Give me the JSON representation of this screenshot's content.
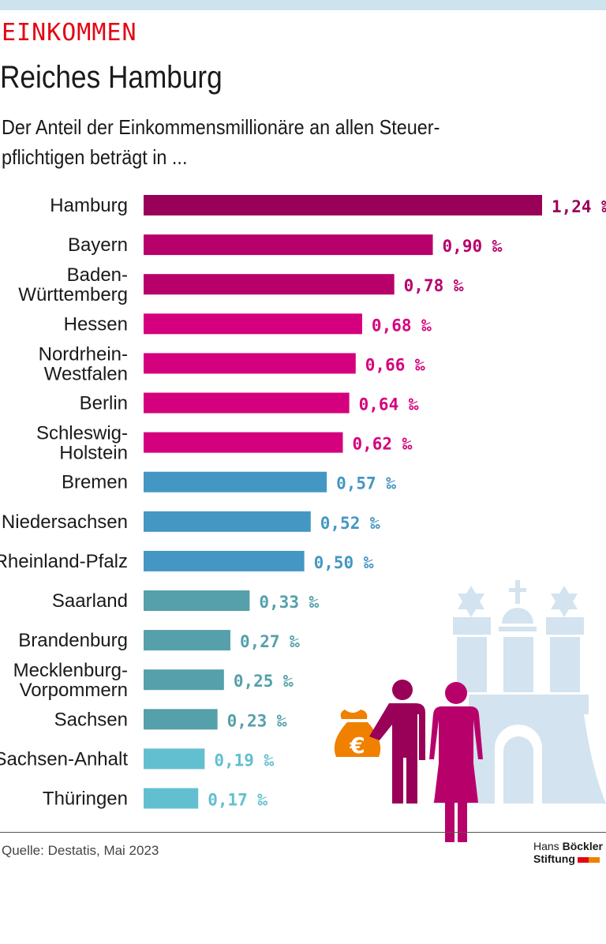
{
  "header": {
    "kicker": "EINKOMMEN",
    "title": "Reiches Hamburg",
    "subtitle_line1": "Der Anteil der Einkommensmillionäre an allen Steuer-",
    "subtitle_line2": "pflichtigen beträgt in ..."
  },
  "chart_data": {
    "type": "bar",
    "orientation": "horizontal",
    "unit": "‰",
    "categories": [
      [
        "Hamburg"
      ],
      [
        "Bayern"
      ],
      [
        "Baden-",
        "Württemberg"
      ],
      [
        "Hessen"
      ],
      [
        "Nordrhein-",
        "Westfalen"
      ],
      [
        "Berlin"
      ],
      [
        "Schleswig-",
        "Holstein"
      ],
      [
        "Bremen"
      ],
      [
        "Niedersachsen"
      ],
      [
        "Rheinland-Pfalz"
      ],
      [
        "Saarland"
      ],
      [
        "Brandenburg"
      ],
      [
        "Mecklenburg-",
        "Vorpommern"
      ],
      [
        "Sachsen"
      ],
      [
        "Sachsen-Anhalt"
      ],
      [
        "Thüringen"
      ]
    ],
    "values": [
      1.24,
      0.9,
      0.78,
      0.68,
      0.66,
      0.64,
      0.62,
      0.57,
      0.52,
      0.5,
      0.33,
      0.27,
      0.25,
      0.23,
      0.19,
      0.17
    ],
    "labels": [
      "1,24",
      "0,90",
      "0,78",
      "0,68",
      "0,66",
      "0,64",
      "0,62",
      "0,57",
      "0,52",
      "0,50",
      "0,33",
      "0,27",
      "0,25",
      "0,23",
      "0,19",
      "0,17"
    ],
    "colors": [
      "#990058",
      "#b8006b",
      "#b8006b",
      "#d5007d",
      "#d5007d",
      "#d5007d",
      "#d5007d",
      "#4597c3",
      "#4597c3",
      "#4597c3",
      "#55a0aa",
      "#55a0aa",
      "#55a0aa",
      "#55a0aa",
      "#62bfd0",
      "#62bfd0"
    ],
    "xlim": [
      0,
      1.24
    ],
    "grid": false
  },
  "illustration": {
    "icons": [
      "hamburg-coat-of-arms-icon",
      "man-icon",
      "woman-icon",
      "money-bag-euro-icon"
    ]
  },
  "footer": {
    "source": "Quelle: Destatis, Mai 2023",
    "logo_line1a": "Hans ",
    "logo_line1b": "Böckler",
    "logo_line2": "Stiftung"
  }
}
